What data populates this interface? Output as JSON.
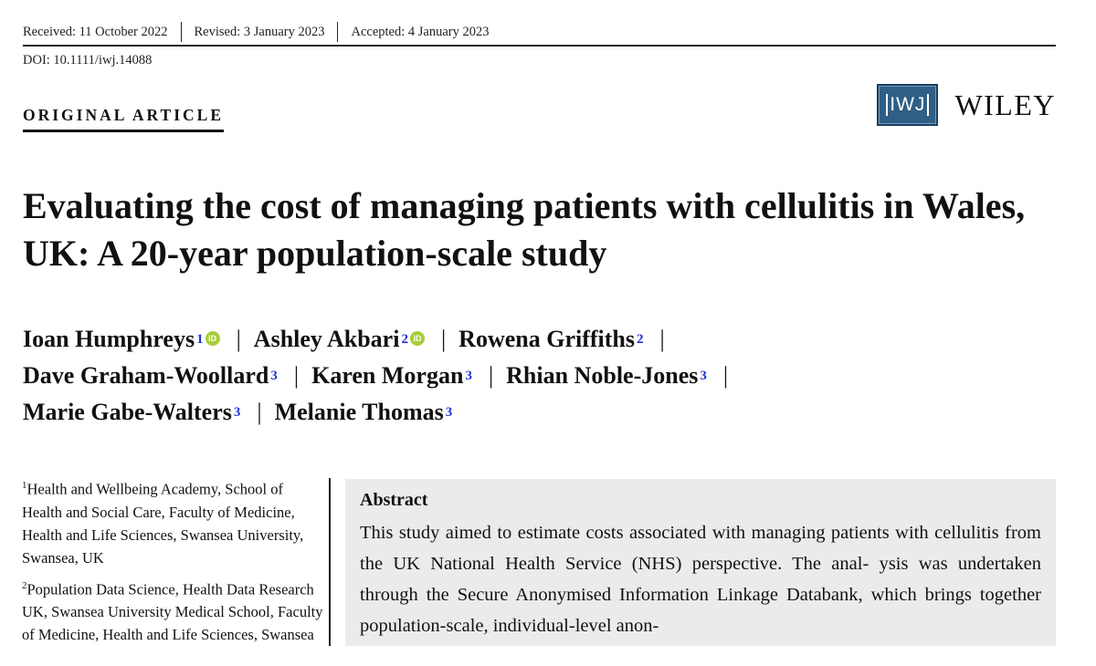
{
  "header": {
    "received": "Received: 11 October 2022",
    "revised": "Revised: 3 January 2023",
    "accepted": "Accepted: 4 January 2023",
    "doi": "DOI: 10.1111/iwj.14088",
    "article_type": "ORIGINAL ARTICLE"
  },
  "brand": {
    "journal_logo_text": "IWJ",
    "publisher": "WILEY",
    "logo_color": "#2f5f86"
  },
  "title": "Evaluating the cost of managing patients with cellulitis in Wales, UK: A 20-year population-scale study",
  "authors": [
    {
      "name": "Ioan Humphreys",
      "aff": "1",
      "orcid": true
    },
    {
      "name": "Ashley Akbari",
      "aff": "2",
      "orcid": true
    },
    {
      "name": "Rowena Griffiths",
      "aff": "2",
      "orcid": false
    },
    {
      "name": "Dave Graham-Woollard",
      "aff": "3",
      "orcid": false
    },
    {
      "name": "Karen Morgan",
      "aff": "3",
      "orcid": false
    },
    {
      "name": "Rhian Noble-Jones",
      "aff": "3",
      "orcid": false
    },
    {
      "name": "Marie Gabe-Walters",
      "aff": "3",
      "orcid": false
    },
    {
      "name": "Melanie Thomas",
      "aff": "3",
      "orcid": false
    }
  ],
  "author_separator": "|",
  "orcid_icon_text": "iD",
  "affiliations": [
    {
      "num": "1",
      "text": "Health and Wellbeing Academy, School of Health and Social Care, Faculty of Medicine, Health and Life Sciences, Swansea University, Swansea, UK"
    },
    {
      "num": "2",
      "text": "Population Data Science, Health Data Research UK, Swansea University Medical School, Faculty of Medicine, Health and Life Sciences, Swansea University"
    }
  ],
  "abstract": {
    "heading": "Abstract",
    "text": "This study aimed to estimate costs associated with managing patients with cellulitis from the UK National Health Service (NHS) perspective. The anal- ysis was undertaken through the Secure Anonymised Information Linkage Databank, which brings together population-scale, individual-level anon-"
  }
}
